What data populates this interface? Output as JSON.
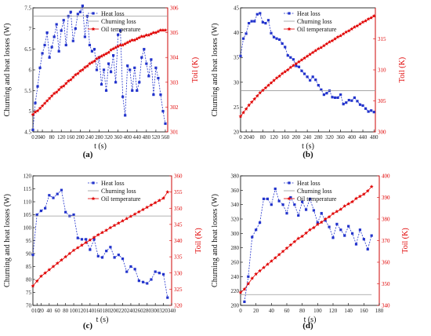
{
  "chart_data": [
    {
      "type": "line",
      "panel_label": "(a)",
      "xlabel": "t (s)",
      "ylabel": "Churning and heat losses (W)",
      "y2label": "Toil (K)",
      "xlim": [
        0,
        570
      ],
      "ylim": [
        4.5,
        7.5
      ],
      "y2lim": [
        301,
        306
      ],
      "xticks": [
        0,
        20,
        40,
        80,
        120,
        160,
        200,
        240,
        280,
        320,
        360,
        400,
        440,
        480,
        520,
        560
      ],
      "yticks": [
        4.5,
        5,
        5.5,
        6,
        6.5,
        7,
        7.5
      ],
      "y2ticks": [
        301,
        302,
        303,
        304,
        305,
        306
      ],
      "legend": [
        "Heat loss",
        "Churning loss",
        "Oil temperature"
      ],
      "series": [
        {
          "name": "Heat loss",
          "axis": "left",
          "color": "#2233cc",
          "marker": "square",
          "dash": true,
          "x": [
            0,
            10,
            20,
            30,
            40,
            50,
            60,
            70,
            80,
            90,
            100,
            110,
            120,
            130,
            140,
            150,
            160,
            170,
            180,
            190,
            200,
            210,
            220,
            230,
            240,
            250,
            260,
            270,
            280,
            290,
            300,
            310,
            320,
            330,
            340,
            350,
            360,
            370,
            380,
            390,
            400,
            410,
            420,
            430,
            440,
            450,
            460,
            470,
            480,
            490,
            500,
            510,
            520,
            530,
            540,
            550,
            560
          ],
          "y": [
            4.55,
            5.2,
            5.6,
            6.05,
            6.4,
            6.6,
            6.9,
            6.3,
            6.55,
            6.8,
            7.1,
            6.45,
            6.95,
            7.2,
            6.6,
            7.3,
            7.4,
            6.7,
            7.0,
            7.35,
            7.4,
            7.55,
            6.8,
            7.3,
            6.6,
            6.45,
            6.5,
            6.0,
            6.3,
            5.65,
            6.0,
            5.5,
            6.15,
            5.95,
            6.35,
            5.7,
            6.85,
            6.95,
            5.35,
            4.9,
            6.1,
            6.0,
            5.5,
            6.05,
            5.5,
            5.7,
            6.3,
            6.5,
            6.15,
            5.85,
            6.25,
            5.4,
            6.05,
            5.8,
            5.4,
            5.0,
            4.7
          ]
        },
        {
          "name": "Churning loss",
          "axis": "left",
          "color": "#999999",
          "marker": "none",
          "x": [
            0,
            570
          ],
          "y": [
            7.3,
            7.3
          ]
        },
        {
          "name": "Oil temperature",
          "axis": "right",
          "color": "#e00000",
          "marker": "star",
          "x": [
            0,
            10,
            20,
            30,
            40,
            50,
            60,
            70,
            80,
            90,
            100,
            110,
            120,
            130,
            140,
            150,
            160,
            170,
            180,
            190,
            200,
            210,
            220,
            230,
            240,
            250,
            260,
            270,
            280,
            290,
            300,
            310,
            320,
            330,
            340,
            350,
            360,
            370,
            380,
            390,
            400,
            410,
            420,
            430,
            440,
            450,
            460,
            470,
            480,
            490,
            500,
            510,
            520,
            530,
            540,
            550,
            560
          ],
          "y": [
            301.7,
            301.8,
            301.85,
            301.95,
            302.05,
            302.15,
            302.25,
            302.35,
            302.45,
            302.55,
            302.6,
            302.7,
            302.8,
            302.85,
            302.95,
            303.05,
            303.1,
            303.2,
            303.3,
            303.35,
            303.45,
            303.5,
            303.6,
            303.65,
            303.75,
            303.8,
            303.85,
            303.95,
            304.0,
            304.05,
            304.1,
            304.15,
            304.2,
            304.3,
            304.35,
            304.4,
            304.45,
            304.5,
            304.5,
            304.55,
            304.6,
            304.65,
            304.7,
            304.7,
            304.75,
            304.8,
            304.85,
            304.85,
            304.9,
            304.9,
            304.95,
            305.0,
            305.0,
            305.05,
            305.1,
            305.1,
            305.1
          ]
        }
      ]
    },
    {
      "type": "line",
      "panel_label": "(b)",
      "xlabel": "t (s)",
      "ylabel": "Churning and heat losses (W)",
      "y2label": "Toil (K)",
      "xlim": [
        0,
        485
      ],
      "ylim": [
        20,
        45
      ],
      "y2lim": [
        300,
        320
      ],
      "xticks": [
        0,
        20,
        40,
        80,
        120,
        160,
        200,
        240,
        280,
        320,
        360,
        400,
        440,
        480
      ],
      "yticks": [
        20,
        25,
        30,
        35,
        40,
        45
      ],
      "y2ticks": [
        300,
        305,
        310,
        315
      ],
      "legend": [
        "Heat loss",
        "Churning loss",
        "Oil temperature"
      ],
      "series": [
        {
          "name": "Heat loss",
          "axis": "left",
          "color": "#2233cc",
          "marker": "square",
          "dash": true,
          "x": [
            0,
            10,
            20,
            30,
            40,
            50,
            60,
            70,
            80,
            90,
            100,
            110,
            120,
            130,
            140,
            150,
            160,
            170,
            180,
            190,
            200,
            210,
            220,
            230,
            240,
            250,
            260,
            270,
            280,
            290,
            300,
            310,
            320,
            330,
            340,
            350,
            360,
            370,
            380,
            390,
            400,
            410,
            420,
            430,
            440,
            450,
            460,
            470,
            480
          ],
          "y": [
            35.3,
            38.8,
            39.8,
            41.9,
            42.3,
            42.3,
            43.7,
            43.9,
            42.1,
            41.9,
            42.5,
            39.9,
            39.1,
            38.8,
            38.6,
            37.8,
            37.1,
            35.4,
            35.0,
            34.6,
            33.3,
            33.1,
            32.3,
            31.7,
            31.1,
            30.4,
            31.1,
            30.5,
            29.4,
            28.5,
            27.5,
            27.8,
            28.3,
            27.0,
            26.9,
            26.9,
            27.5,
            25.6,
            25.9,
            26.4,
            26.3,
            26.9,
            26.2,
            25.5,
            25.3,
            24.7,
            24.1,
            24.3,
            24.0
          ]
        },
        {
          "name": "Churning loss",
          "axis": "left",
          "color": "#999999",
          "marker": "none",
          "x": [
            0,
            485
          ],
          "y": [
            28.3,
            28.3
          ]
        },
        {
          "name": "Oil temperature",
          "axis": "right",
          "color": "#e00000",
          "marker": "star",
          "x": [
            0,
            10,
            20,
            30,
            40,
            50,
            60,
            70,
            80,
            90,
            100,
            110,
            120,
            130,
            140,
            150,
            160,
            170,
            180,
            190,
            200,
            210,
            220,
            230,
            240,
            250,
            260,
            270,
            280,
            290,
            300,
            310,
            320,
            330,
            340,
            350,
            360,
            370,
            380,
            390,
            400,
            410,
            420,
            430,
            440,
            450,
            460,
            470,
            480
          ],
          "y": [
            302.5,
            303.1,
            303.7,
            304.3,
            304.8,
            305.3,
            305.8,
            306.3,
            306.7,
            307.1,
            307.5,
            307.9,
            308.3,
            308.7,
            309.0,
            309.4,
            309.7,
            310.0,
            310.4,
            310.7,
            311.0,
            311.3,
            311.6,
            311.9,
            312.2,
            312.5,
            312.8,
            313.1,
            313.4,
            313.6,
            313.9,
            314.2,
            314.5,
            314.7,
            315.0,
            315.3,
            315.5,
            315.8,
            316.1,
            316.3,
            316.6,
            316.9,
            317.1,
            317.4,
            317.7,
            317.9,
            318.2,
            318.4,
            318.7
          ]
        }
      ]
    },
    {
      "type": "line",
      "panel_label": "(c)",
      "xlabel": "t (s)",
      "ylabel": "Churning and heat losses (W)",
      "y2label": "Toil (K)",
      "xlim": [
        0,
        340
      ],
      "ylim": [
        70,
        120
      ],
      "y2lim": [
        320,
        360
      ],
      "xticks": [
        0,
        10,
        20,
        40,
        60,
        80,
        100,
        120,
        140,
        160,
        180,
        200,
        220,
        240,
        260,
        280,
        300,
        320,
        340
      ],
      "yticks": [
        70,
        75,
        80,
        85,
        90,
        95,
        100,
        105,
        110,
        115,
        120
      ],
      "y2ticks": [
        320,
        325,
        330,
        335,
        340,
        345,
        350,
        355,
        360
      ],
      "legend": [
        "Heat loss",
        "Churning loss",
        "Oil temperature"
      ],
      "series": [
        {
          "name": "Heat loss",
          "axis": "left",
          "color": "#2233cc",
          "marker": "square",
          "dash": true,
          "x": [
            0,
            10,
            20,
            30,
            40,
            50,
            60,
            70,
            80,
            90,
            100,
            110,
            120,
            130,
            140,
            150,
            160,
            170,
            180,
            190,
            200,
            210,
            220,
            230,
            240,
            250,
            260,
            270,
            280,
            290,
            300,
            310,
            320,
            330
          ],
          "y": [
            89.5,
            105.0,
            106.5,
            107.5,
            112.5,
            111.5,
            113.0,
            114.5,
            106.0,
            104.5,
            105.0,
            96.0,
            95.5,
            95.5,
            91.5,
            95.5,
            89.0,
            88.5,
            91.0,
            92.5,
            88.5,
            89.5,
            88.0,
            83.0,
            85.0,
            84.0,
            79.5,
            79.0,
            78.5,
            80.0,
            83.0,
            82.5,
            82.0,
            73.0
          ]
        },
        {
          "name": "Churning loss",
          "axis": "left",
          "color": "#999999",
          "marker": "none",
          "x": [
            0,
            340
          ],
          "y": [
            104.5,
            104.5
          ]
        },
        {
          "name": "Oil temperature",
          "axis": "right",
          "color": "#e00000",
          "marker": "star",
          "x": [
            0,
            10,
            20,
            30,
            40,
            50,
            60,
            70,
            80,
            90,
            100,
            110,
            120,
            130,
            140,
            150,
            160,
            170,
            180,
            190,
            200,
            210,
            220,
            230,
            240,
            250,
            260,
            270,
            280,
            290,
            300,
            310,
            320,
            330
          ],
          "y": [
            326.0,
            327.5,
            329.0,
            330.0,
            331.0,
            332.0,
            333.0,
            334.0,
            335.0,
            336.0,
            337.0,
            337.8,
            338.6,
            339.4,
            340.2,
            341.0,
            341.8,
            342.5,
            343.2,
            344.0,
            344.7,
            345.4,
            346.1,
            346.8,
            347.5,
            348.2,
            348.9,
            349.6,
            350.3,
            351.0,
            351.7,
            352.4,
            353.1,
            355.0
          ]
        }
      ]
    },
    {
      "type": "line",
      "panel_label": "(d)",
      "xlabel": "t (s)",
      "ylabel": "Churning and heat losses (W)",
      "y2label": "Toil (K)",
      "xlim": [
        0,
        180
      ],
      "ylim": [
        200,
        380
      ],
      "y2lim": [
        340,
        400
      ],
      "xticks": [
        0,
        20,
        40,
        60,
        80,
        100,
        120,
        140,
        160,
        180
      ],
      "yticks": [
        200,
        220,
        240,
        260,
        280,
        300,
        320,
        340,
        360,
        380
      ],
      "y2ticks": [
        340,
        350,
        360,
        370,
        380,
        390,
        400
      ],
      "legend": [
        "Heat loss",
        "Churning loss",
        "Oil temperature"
      ],
      "series": [
        {
          "name": "Heat loss",
          "axis": "left",
          "color": "#2233cc",
          "marker": "square",
          "dash": true,
          "x": [
            5,
            10,
            15,
            20,
            25,
            30,
            35,
            40,
            45,
            50,
            55,
            60,
            65,
            70,
            75,
            80,
            85,
            90,
            95,
            100,
            105,
            110,
            115,
            120,
            125,
            130,
            135,
            140,
            145,
            150,
            155,
            160,
            165,
            170
          ],
          "y": [
            205,
            240,
            295,
            305,
            315,
            348,
            348,
            340,
            362,
            345,
            340,
            328,
            350,
            340,
            325,
            344,
            333,
            348,
            332,
            315,
            328,
            318,
            309,
            294,
            313,
            305,
            297,
            310,
            300,
            285,
            305,
            292,
            278,
            297
          ]
        },
        {
          "name": "Churning loss",
          "axis": "left",
          "color": "#999999",
          "marker": "none",
          "x": [
            0,
            170
          ],
          "y": [
            215,
            215
          ]
        },
        {
          "name": "Oil temperature",
          "axis": "right",
          "color": "#e00000",
          "marker": "star",
          "x": [
            0,
            5,
            10,
            15,
            20,
            25,
            30,
            35,
            40,
            45,
            50,
            55,
            60,
            65,
            70,
            75,
            80,
            85,
            90,
            95,
            100,
            105,
            110,
            115,
            120,
            125,
            130,
            135,
            140,
            145,
            150,
            155,
            160,
            165,
            170
          ],
          "y": [
            346.0,
            347.5,
            350.0,
            352.5,
            354.5,
            356.0,
            357.5,
            359.0,
            360.5,
            362.0,
            363.5,
            365.0,
            366.5,
            368.0,
            369.5,
            371.0,
            372.0,
            373.5,
            375.0,
            376.0,
            377.5,
            378.5,
            380.0,
            381.0,
            382.5,
            383.5,
            384.5,
            386.0,
            387.0,
            388.0,
            389.5,
            390.5,
            391.5,
            393.0,
            395.0
          ]
        }
      ]
    }
  ]
}
